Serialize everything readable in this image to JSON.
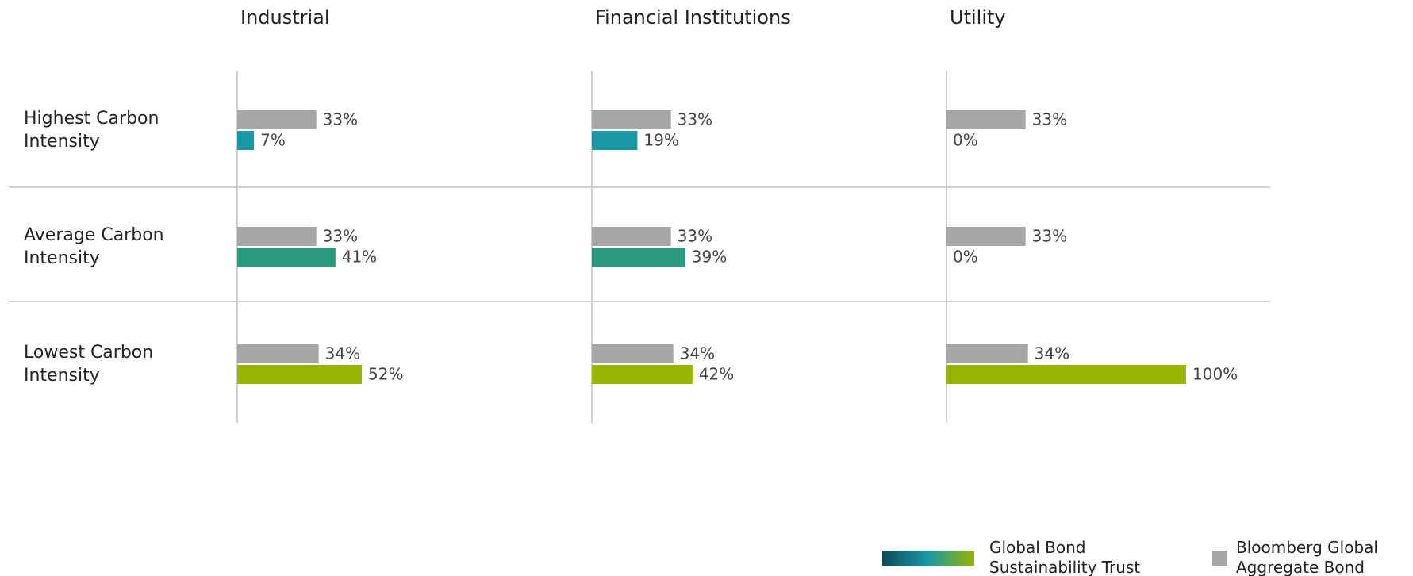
{
  "chart_data": {
    "type": "bar",
    "panels": [
      "Industrial",
      "Financial Institutions",
      "Utility"
    ],
    "categories": [
      "Highest Carbon Intensity",
      "Average Carbon Intensity",
      "Lowest Carbon Intensity"
    ],
    "series": [
      {
        "name": "Bloomberg Global Aggregate Bond Index",
        "color": "#a6a6a6",
        "values": [
          [
            33,
            33,
            34
          ],
          [
            33,
            33,
            34
          ],
          [
            33,
            33,
            34
          ]
        ],
        "value_labels": [
          [
            "33%",
            "33%",
            "34%"
          ],
          [
            "33%",
            "33%",
            "34%"
          ],
          [
            "33%",
            "33%",
            "34%"
          ]
        ]
      },
      {
        "name": "Global Bond Sustainability Trust",
        "colors": [
          "#1a98a6",
          "#2b9b7f",
          "#96b400"
        ],
        "legend_gradient": [
          "#0d4a5a",
          "#1a98a6",
          "#96b400"
        ],
        "values": [
          [
            7,
            41,
            52
          ],
          [
            19,
            39,
            42
          ],
          [
            0,
            0,
            100
          ]
        ],
        "value_labels": [
          [
            "7%",
            "41%",
            "52%"
          ],
          [
            "19%",
            "39%",
            "42%"
          ],
          [
            "0%",
            "0%",
            "100%"
          ]
        ]
      }
    ],
    "xlim": [
      0,
      100
    ]
  }
}
